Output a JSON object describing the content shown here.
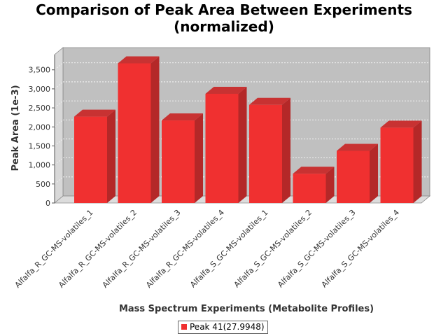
{
  "chart_data": {
    "type": "bar",
    "title_lines": [
      "Comparison of Peak Area Between Experiments",
      "(normalized)"
    ],
    "xlabel": "Mass Spectrum Experiments (Metabolite Profiles)",
    "ylabel": "Peak Area (1e-3)",
    "categories": [
      "Alfalfa_R_GC-MS-volatiles_1",
      "Alfalfa_R_GC-MS-volatiles_2",
      "Alfalfa_R_GC-MS-volatiles_3",
      "Alfalfa_R_GC-MS-volatiles_4",
      "Alfalfa_S_GC-MS-volatiles_1",
      "Alfalfa_S_GC-MS-volatiles_2",
      "Alfalfa_S_GC-MS-volatiles_3",
      "Alfalfa_S_GC-MS-volatiles_4"
    ],
    "series": [
      {
        "name": "Peak 41(27.9948)",
        "color": "#f03030",
        "values": [
          2270,
          3670,
          2170,
          2870,
          2580,
          770,
          1370,
          1980
        ]
      }
    ],
    "ylim": [
      0,
      3900
    ],
    "yticks": [
      0,
      500,
      1000,
      1500,
      2000,
      2500,
      3000,
      3500
    ],
    "ytick_labels": [
      "0",
      "500",
      "1,000",
      "1,500",
      "2,000",
      "2,500",
      "3,000",
      "3,500"
    ],
    "grid": true,
    "legend": "bottom-center",
    "style": "3d"
  }
}
